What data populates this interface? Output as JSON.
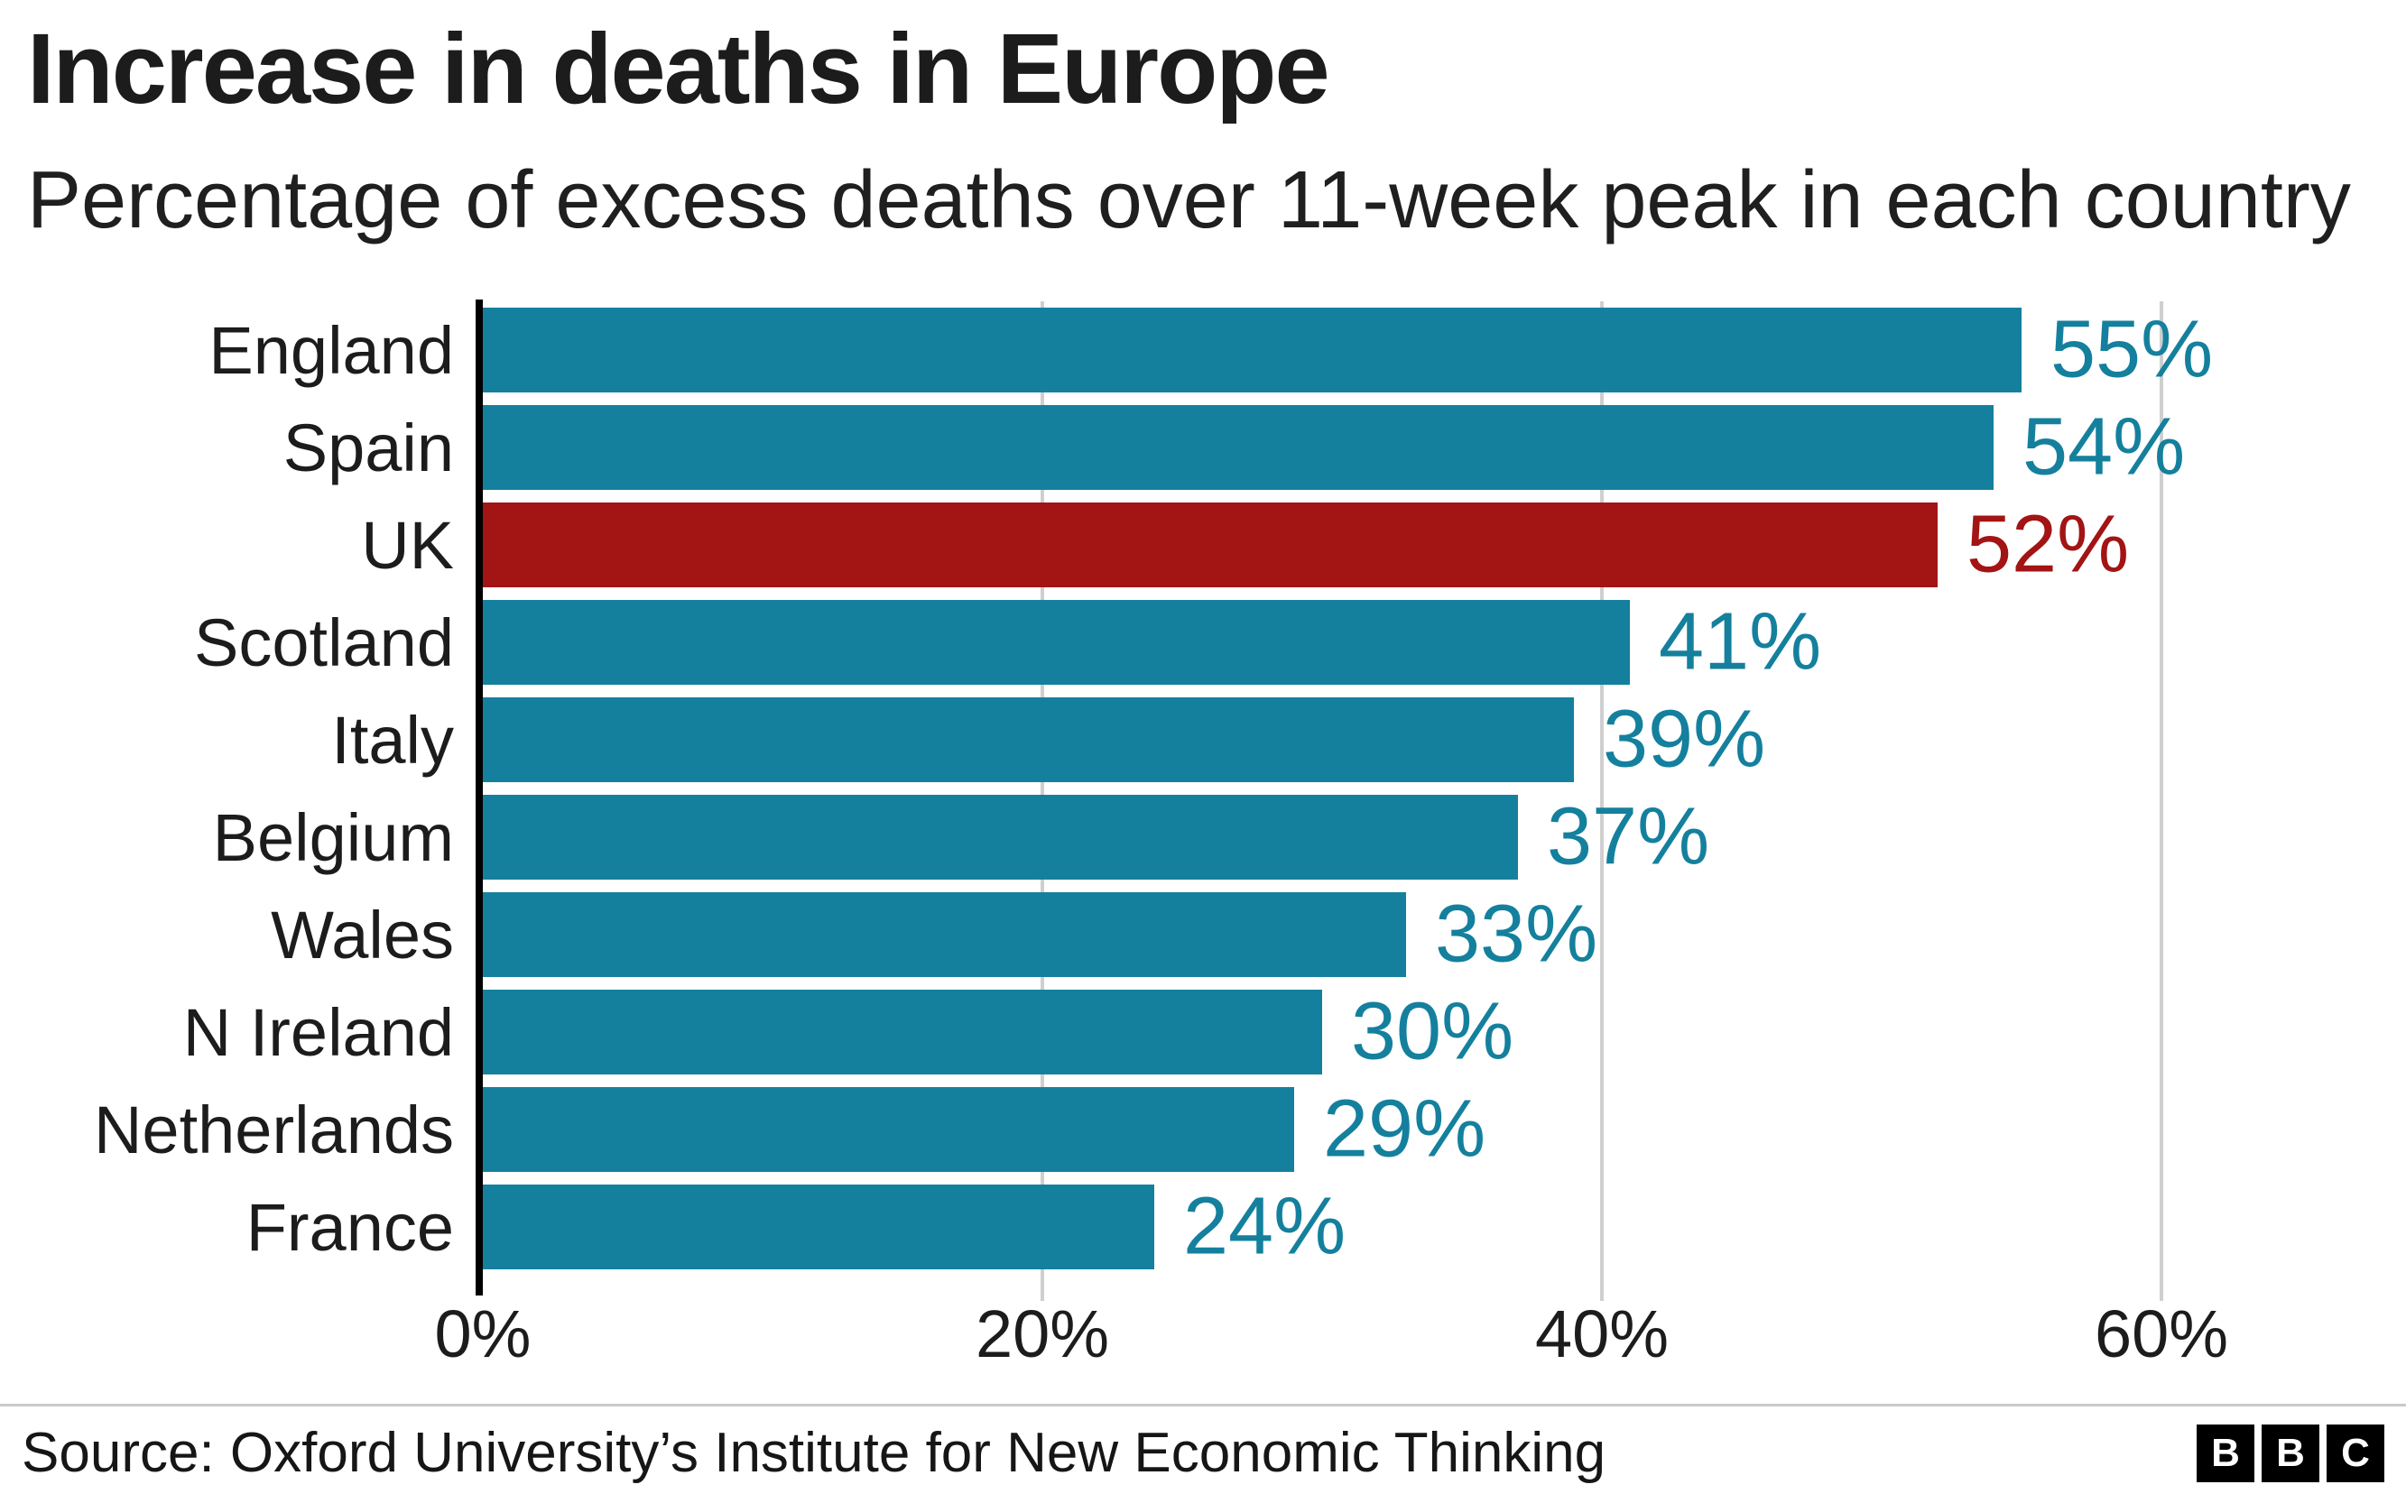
{
  "title": "Increase in deaths in Europe",
  "subtitle": "Percentage of excess deaths over 11-week peak in each country",
  "source": "Source: Oxford University’s Institute for New Economic Thinking",
  "logo_letters": [
    "B",
    "B",
    "C"
  ],
  "colors": {
    "bar": "#14809d",
    "bar_highlight": "#a31414",
    "gridline": "#cfcfcf",
    "axis": "#000000",
    "text": "#1c1c1c"
  },
  "chart_data": {
    "type": "bar",
    "orientation": "horizontal",
    "title": "Increase in deaths in Europe",
    "subtitle": "Percentage of excess deaths over 11-week peak in each country",
    "categories": [
      "England",
      "Spain",
      "UK",
      "Scotland",
      "Italy",
      "Belgium",
      "Wales",
      "N Ireland",
      "Netherlands",
      "France"
    ],
    "values": [
      55,
      54,
      52,
      41,
      39,
      37,
      33,
      30,
      29,
      24
    ],
    "value_labels": [
      "55%",
      "54%",
      "52%",
      "41%",
      "39%",
      "37%",
      "33%",
      "30%",
      "29%",
      "24%"
    ],
    "highlight_index": 2,
    "highlight_category": "UK",
    "x_ticks": [
      {
        "value": 0,
        "label": "0%"
      },
      {
        "value": 20,
        "label": "20%"
      },
      {
        "value": 40,
        "label": "40%"
      },
      {
        "value": 60,
        "label": "60%"
      }
    ],
    "x_max": 66,
    "xlim": [
      0,
      66
    ],
    "grid": "vertical",
    "legend": false
  }
}
